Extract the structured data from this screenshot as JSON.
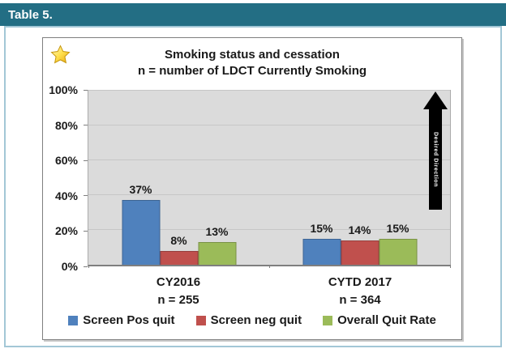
{
  "header": {
    "title": "Table 5."
  },
  "icons": {
    "star": "gold-star-icon",
    "desired_direction": "black-up-arrow-icon"
  },
  "colors": {
    "header_bg": "#236E84",
    "panel_border": "#A3C7D6",
    "plot_bg": "#DBDBDB",
    "arrow": "#000000",
    "series_blue": "#4F81BD",
    "series_red": "#C0504D",
    "series_green": "#9BBB59"
  },
  "chart_data": {
    "type": "bar",
    "title": "Smoking status and cessation",
    "subtitle": "n = number of LDCT Currently Smoking",
    "categories": [
      "CY2016",
      "CYTD 2017"
    ],
    "category_sublabels": [
      "n = 255",
      "n = 364"
    ],
    "series": [
      {
        "name": "Screen Pos quit",
        "color": "#4F81BD",
        "values": [
          37,
          15
        ]
      },
      {
        "name": "Screen neg quit",
        "color": "#C0504D",
        "values": [
          8,
          14
        ]
      },
      {
        "name": "Overall Quit Rate",
        "color": "#9BBB59",
        "values": [
          13,
          15
        ]
      }
    ],
    "data_label_format": "{v}%",
    "ylim": [
      0,
      100
    ],
    "ytick_labels": [
      "0%",
      "20%",
      "40%",
      "60%",
      "80%",
      "100%"
    ],
    "grid": true,
    "legend_position": "bottom",
    "annotation": "Desired Direction"
  }
}
